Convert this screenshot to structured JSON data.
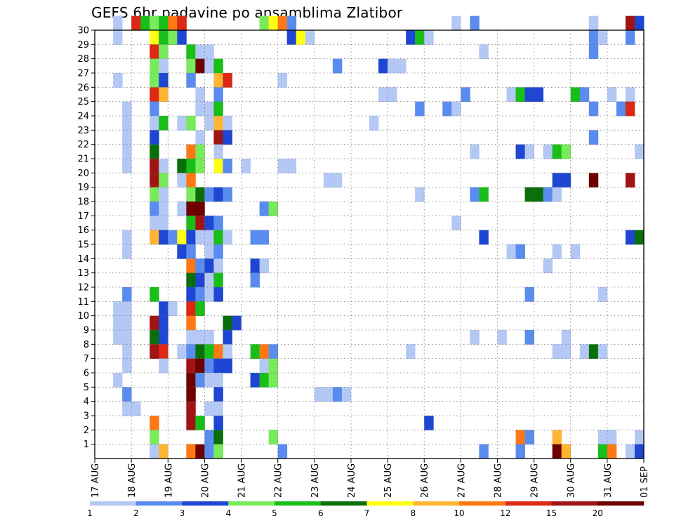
{
  "chart_data": {
    "type": "heatmap",
    "title": "GEFS 6hr padavine po ansamblima Zlatibor",
    "y_ticks": [
      "1",
      "2",
      "3",
      "4",
      "5",
      "6",
      "7",
      "8",
      "9",
      "10",
      "11",
      "12",
      "13",
      "14",
      "15",
      "16",
      "17",
      "18",
      "19",
      "20",
      "21",
      "22",
      "23",
      "24",
      "25",
      "26",
      "27",
      "28",
      "29",
      "30"
    ],
    "x_ticks": [
      "17 AUG",
      "18 AUG",
      "19 AUG",
      "20 AUG",
      "21 AUG",
      "22 AUG",
      "23 AUG",
      "24 AUG",
      "25 AUG",
      "26 AUG",
      "27 AUG",
      "28 AUG",
      "29 AUG",
      "30 AUG",
      "31 AUG",
      "01 SEP"
    ],
    "legend_thresholds": [
      "1",
      "2",
      "3",
      "4",
      "5",
      "6",
      "7",
      "8",
      "10",
      "12",
      "15",
      "20"
    ],
    "colors": [
      "#b4c8f5",
      "#5a8cf0",
      "#1e46d2",
      "#78eb5a",
      "#19be19",
      "#0a6e0a",
      "#ffff14",
      "#ffb432",
      "#ff7814",
      "#dc2814",
      "#a01414",
      "#6e0000"
    ],
    "grid": true,
    "cells": [
      [
        30,
        2,
        1
      ],
      [
        30,
        4,
        10
      ],
      [
        30,
        5,
        5
      ],
      [
        30,
        6,
        2
      ],
      [
        30,
        6,
        4
      ],
      [
        30,
        7,
        5
      ],
      [
        30,
        8,
        3
      ],
      [
        30,
        8,
        9
      ],
      [
        30,
        9,
        5
      ],
      [
        30,
        9,
        10
      ],
      [
        30,
        18,
        4
      ],
      [
        30,
        19,
        7
      ],
      [
        30,
        20,
        9
      ],
      [
        30,
        21,
        2
      ],
      [
        30,
        39,
        1
      ],
      [
        30,
        41,
        2
      ],
      [
        30,
        54,
        1
      ],
      [
        30,
        58,
        11
      ],
      [
        30,
        59,
        3
      ],
      [
        29,
        2,
        1
      ],
      [
        29,
        6,
        7
      ],
      [
        29,
        7,
        3
      ],
      [
        29,
        7,
        5
      ],
      [
        29,
        8,
        6
      ],
      [
        29,
        8,
        4
      ],
      [
        29,
        9,
        3
      ],
      [
        29,
        21,
        3
      ],
      [
        29,
        22,
        7
      ],
      [
        29,
        23,
        1
      ],
      [
        29,
        34,
        3
      ],
      [
        29,
        35,
        5
      ],
      [
        29,
        36,
        1
      ],
      [
        29,
        54,
        2
      ],
      [
        29,
        55,
        1
      ],
      [
        29,
        58,
        2
      ],
      [
        28,
        6,
        10
      ],
      [
        28,
        7,
        4
      ],
      [
        28,
        10,
        5
      ],
      [
        28,
        11,
        1
      ],
      [
        28,
        12,
        1
      ],
      [
        28,
        42,
        1
      ],
      [
        28,
        54,
        2
      ],
      [
        27,
        6,
        4
      ],
      [
        27,
        7,
        1
      ],
      [
        27,
        10,
        4
      ],
      [
        27,
        11,
        12
      ],
      [
        27,
        12,
        1
      ],
      [
        27,
        13,
        5
      ],
      [
        27,
        26,
        2
      ],
      [
        27,
        31,
        3
      ],
      [
        27,
        32,
        1
      ],
      [
        27,
        33,
        1
      ],
      [
        26,
        2,
        1
      ],
      [
        26,
        6,
        4
      ],
      [
        26,
        7,
        3
      ],
      [
        26,
        10,
        2
      ],
      [
        26,
        13,
        8
      ],
      [
        26,
        14,
        10
      ],
      [
        26,
        20,
        1
      ],
      [
        25,
        6,
        10
      ],
      [
        25,
        7,
        8
      ],
      [
        25,
        11,
        1
      ],
      [
        25,
        13,
        2
      ],
      [
        25,
        31,
        1
      ],
      [
        25,
        32,
        1
      ],
      [
        25,
        40,
        2
      ],
      [
        25,
        45,
        1
      ],
      [
        25,
        46,
        5
      ],
      [
        25,
        47,
        3
      ],
      [
        25,
        48,
        3
      ],
      [
        25,
        52,
        5
      ],
      [
        25,
        53,
        2
      ],
      [
        25,
        56,
        1
      ],
      [
        25,
        58,
        1
      ],
      [
        24,
        3,
        1
      ],
      [
        24,
        6,
        2
      ],
      [
        24,
        11,
        1
      ],
      [
        24,
        12,
        1
      ],
      [
        24,
        13,
        5
      ],
      [
        24,
        35,
        2
      ],
      [
        24,
        38,
        2
      ],
      [
        24,
        39,
        1
      ],
      [
        24,
        54,
        2
      ],
      [
        24,
        57,
        2
      ],
      [
        24,
        58,
        10
      ],
      [
        23,
        3,
        1
      ],
      [
        23,
        6,
        1
      ],
      [
        23,
        7,
        5
      ],
      [
        23,
        9,
        1
      ],
      [
        23,
        10,
        4
      ],
      [
        23,
        12,
        1
      ],
      [
        23,
        13,
        8
      ],
      [
        23,
        14,
        1
      ],
      [
        23,
        30,
        1
      ],
      [
        22,
        3,
        1
      ],
      [
        22,
        6,
        3
      ],
      [
        22,
        11,
        1
      ],
      [
        22,
        13,
        11
      ],
      [
        22,
        14,
        3
      ],
      [
        22,
        54,
        2
      ],
      [
        21,
        3,
        1
      ],
      [
        21,
        6,
        6
      ],
      [
        21,
        10,
        9
      ],
      [
        21,
        11,
        4
      ],
      [
        21,
        13,
        1
      ],
      [
        21,
        41,
        1
      ],
      [
        21,
        46,
        3
      ],
      [
        21,
        47,
        1
      ],
      [
        21,
        49,
        1
      ],
      [
        21,
        50,
        5
      ],
      [
        21,
        51,
        4
      ],
      [
        21,
        59,
        1
      ],
      [
        20,
        3,
        1
      ],
      [
        20,
        6,
        11
      ],
      [
        20,
        7,
        1
      ],
      [
        20,
        9,
        6
      ],
      [
        20,
        10,
        5
      ],
      [
        20,
        11,
        4
      ],
      [
        20,
        13,
        7
      ],
      [
        20,
        14,
        2
      ],
      [
        20,
        16,
        1
      ],
      [
        20,
        20,
        1
      ],
      [
        20,
        21,
        1
      ],
      [
        19,
        6,
        11
      ],
      [
        19,
        7,
        4
      ],
      [
        19,
        9,
        1
      ],
      [
        19,
        10,
        9
      ],
      [
        19,
        25,
        1
      ],
      [
        19,
        26,
        1
      ],
      [
        19,
        50,
        3
      ],
      [
        19,
        51,
        3
      ],
      [
        19,
        54,
        12
      ],
      [
        19,
        58,
        11
      ],
      [
        18,
        6,
        4
      ],
      [
        18,
        7,
        1
      ],
      [
        18,
        10,
        4
      ],
      [
        18,
        11,
        6
      ],
      [
        18,
        12,
        2
      ],
      [
        18,
        13,
        3
      ],
      [
        18,
        14,
        2
      ],
      [
        18,
        35,
        1
      ],
      [
        18,
        41,
        2
      ],
      [
        18,
        42,
        5
      ],
      [
        18,
        47,
        6
      ],
      [
        18,
        48,
        6
      ],
      [
        18,
        49,
        2
      ],
      [
        18,
        50,
        1
      ],
      [
        17,
        6,
        2
      ],
      [
        17,
        7,
        1
      ],
      [
        17,
        9,
        1
      ],
      [
        17,
        10,
        12
      ],
      [
        17,
        11,
        12
      ],
      [
        17,
        18,
        2
      ],
      [
        17,
        19,
        4
      ],
      [
        16,
        6,
        1
      ],
      [
        16,
        7,
        1
      ],
      [
        16,
        10,
        5
      ],
      [
        16,
        11,
        11
      ],
      [
        16,
        12,
        3
      ],
      [
        16,
        13,
        2
      ],
      [
        16,
        39,
        1
      ],
      [
        15,
        3,
        1
      ],
      [
        15,
        6,
        8
      ],
      [
        15,
        7,
        3
      ],
      [
        15,
        8,
        2
      ],
      [
        15,
        9,
        7
      ],
      [
        15,
        10,
        3
      ],
      [
        15,
        11,
        1
      ],
      [
        15,
        12,
        1
      ],
      [
        15,
        13,
        5
      ],
      [
        15,
        14,
        1
      ],
      [
        15,
        17,
        2
      ],
      [
        15,
        18,
        2
      ],
      [
        15,
        42,
        3
      ],
      [
        15,
        58,
        3
      ],
      [
        15,
        59,
        6
      ],
      [
        14,
        3,
        1
      ],
      [
        14,
        9,
        3
      ],
      [
        14,
        10,
        2
      ],
      [
        14,
        12,
        1
      ],
      [
        14,
        13,
        2
      ],
      [
        14,
        45,
        1
      ],
      [
        14,
        46,
        2
      ],
      [
        14,
        50,
        1
      ],
      [
        14,
        52,
        1
      ],
      [
        13,
        10,
        9
      ],
      [
        13,
        11,
        2
      ],
      [
        13,
        12,
        3
      ],
      [
        13,
        13,
        1
      ],
      [
        13,
        17,
        3
      ],
      [
        13,
        18,
        1
      ],
      [
        13,
        49,
        1
      ],
      [
        12,
        10,
        6
      ],
      [
        12,
        11,
        3
      ],
      [
        12,
        12,
        1
      ],
      [
        12,
        13,
        5
      ],
      [
        12,
        17,
        2
      ],
      [
        11,
        3,
        2
      ],
      [
        11,
        6,
        5
      ],
      [
        11,
        10,
        3
      ],
      [
        11,
        11,
        2
      ],
      [
        11,
        12,
        1
      ],
      [
        11,
        13,
        3
      ],
      [
        11,
        47,
        2
      ],
      [
        11,
        55,
        1
      ],
      [
        10,
        2,
        1
      ],
      [
        10,
        3,
        1
      ],
      [
        10,
        7,
        3
      ],
      [
        10,
        8,
        1
      ],
      [
        10,
        10,
        10
      ],
      [
        10,
        11,
        5
      ],
      [
        9,
        2,
        1
      ],
      [
        9,
        3,
        1
      ],
      [
        9,
        6,
        11
      ],
      [
        9,
        7,
        3
      ],
      [
        9,
        10,
        9
      ],
      [
        9,
        14,
        6
      ],
      [
        9,
        15,
        3
      ],
      [
        8,
        2,
        1
      ],
      [
        8,
        3,
        1
      ],
      [
        8,
        6,
        6
      ],
      [
        8,
        7,
        3
      ],
      [
        8,
        10,
        1
      ],
      [
        8,
        11,
        1
      ],
      [
        8,
        12,
        1
      ],
      [
        8,
        14,
        3
      ],
      [
        8,
        41,
        1
      ],
      [
        8,
        44,
        1
      ],
      [
        8,
        47,
        2
      ],
      [
        8,
        51,
        1
      ],
      [
        7,
        3,
        1
      ],
      [
        7,
        6,
        11
      ],
      [
        7,
        7,
        10
      ],
      [
        7,
        9,
        1
      ],
      [
        7,
        10,
        2
      ],
      [
        7,
        11,
        6
      ],
      [
        7,
        12,
        5
      ],
      [
        7,
        13,
        9
      ],
      [
        7,
        14,
        1
      ],
      [
        7,
        17,
        5
      ],
      [
        7,
        18,
        9
      ],
      [
        7,
        19,
        2
      ],
      [
        7,
        34,
        1
      ],
      [
        7,
        50,
        1
      ],
      [
        7,
        51,
        1
      ],
      [
        7,
        53,
        1
      ],
      [
        7,
        54,
        6
      ],
      [
        7,
        55,
        1
      ],
      [
        6,
        3,
        1
      ],
      [
        6,
        7,
        1
      ],
      [
        6,
        10,
        11
      ],
      [
        6,
        11,
        12
      ],
      [
        6,
        12,
        2
      ],
      [
        6,
        13,
        3
      ],
      [
        6,
        14,
        3
      ],
      [
        6,
        18,
        1
      ],
      [
        6,
        19,
        4
      ],
      [
        5,
        2,
        1
      ],
      [
        5,
        10,
        12
      ],
      [
        5,
        11,
        2
      ],
      [
        5,
        12,
        1
      ],
      [
        5,
        13,
        1
      ],
      [
        5,
        17,
        3
      ],
      [
        5,
        18,
        5
      ],
      [
        5,
        19,
        4
      ],
      [
        4,
        3,
        2
      ],
      [
        4,
        10,
        12
      ],
      [
        4,
        13,
        3
      ],
      [
        4,
        24,
        1
      ],
      [
        4,
        25,
        1
      ],
      [
        4,
        26,
        2
      ],
      [
        4,
        27,
        1
      ],
      [
        3,
        3,
        1
      ],
      [
        3,
        4,
        1
      ],
      [
        3,
        10,
        11
      ],
      [
        3,
        12,
        1
      ],
      [
        3,
        13,
        1
      ],
      [
        2,
        6,
        9
      ],
      [
        2,
        10,
        11
      ],
      [
        2,
        11,
        5
      ],
      [
        2,
        13,
        3
      ],
      [
        2,
        36,
        3
      ],
      [
        1,
        6,
        4
      ],
      [
        1,
        12,
        2
      ],
      [
        1,
        13,
        6
      ],
      [
        1,
        19,
        4
      ],
      [
        1,
        46,
        9
      ],
      [
        1,
        47,
        2
      ],
      [
        1,
        50,
        8
      ],
      [
        1,
        55,
        1
      ],
      [
        1,
        56,
        1
      ],
      [
        1,
        59,
        1
      ],
      [
        0,
        6,
        1
      ],
      [
        0,
        7,
        8
      ],
      [
        0,
        10,
        9
      ],
      [
        0,
        11,
        12
      ],
      [
        0,
        12,
        2
      ],
      [
        0,
        13,
        4
      ],
      [
        0,
        20,
        2
      ],
      [
        0,
        42,
        2
      ],
      [
        0,
        46,
        2
      ],
      [
        0,
        50,
        12
      ],
      [
        0,
        51,
        8
      ],
      [
        0,
        55,
        5
      ],
      [
        0,
        56,
        9
      ],
      [
        0,
        58,
        1
      ],
      [
        0,
        59,
        3
      ]
    ]
  }
}
